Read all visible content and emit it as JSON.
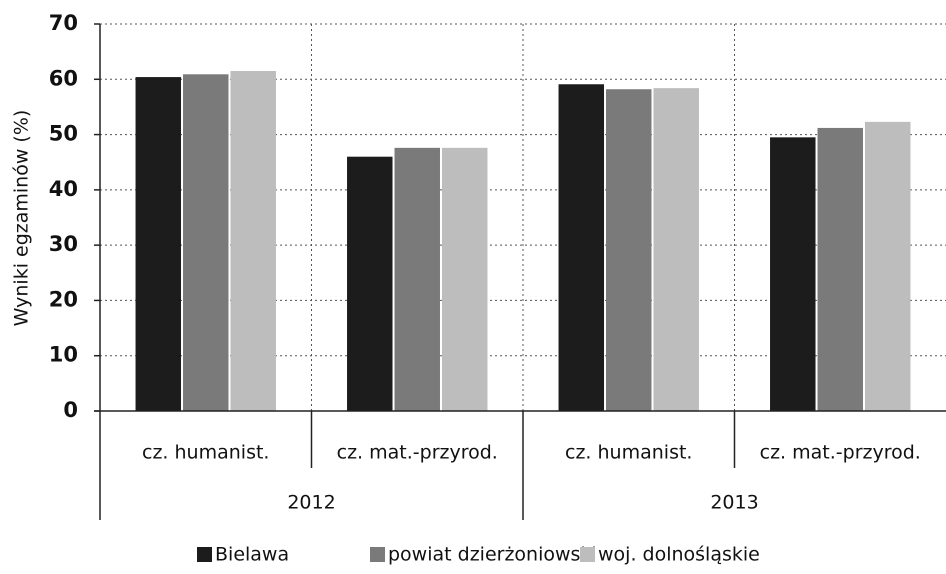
{
  "chart_data": {
    "type": "bar",
    "y_label": "Wyniki egzaminów (%)",
    "categories": [
      "cz. humanist.",
      "cz. mat.-przyrod.",
      "cz. humanist.",
      "cz. mat.-przyrod."
    ],
    "groups": [
      "2012",
      "2013"
    ],
    "series": [
      {
        "name": "Bielawa",
        "color": "#1c1c1c",
        "values": [
          60.4,
          46.0,
          59.1,
          49.5
        ]
      },
      {
        "name": "powiat dzierżoniowski",
        "color": "#7a7a7a",
        "values": [
          60.9,
          47.6,
          58.2,
          51.2
        ]
      },
      {
        "name": "woj. dolnośląskie",
        "color": "#bdbdbd",
        "values": [
          61.5,
          47.6,
          58.4,
          52.3
        ]
      }
    ],
    "ylim": [
      0,
      70
    ],
    "yticks": [
      0,
      10,
      20,
      30,
      40,
      50,
      60,
      70
    ],
    "grid": true,
    "legend": "bottom"
  }
}
